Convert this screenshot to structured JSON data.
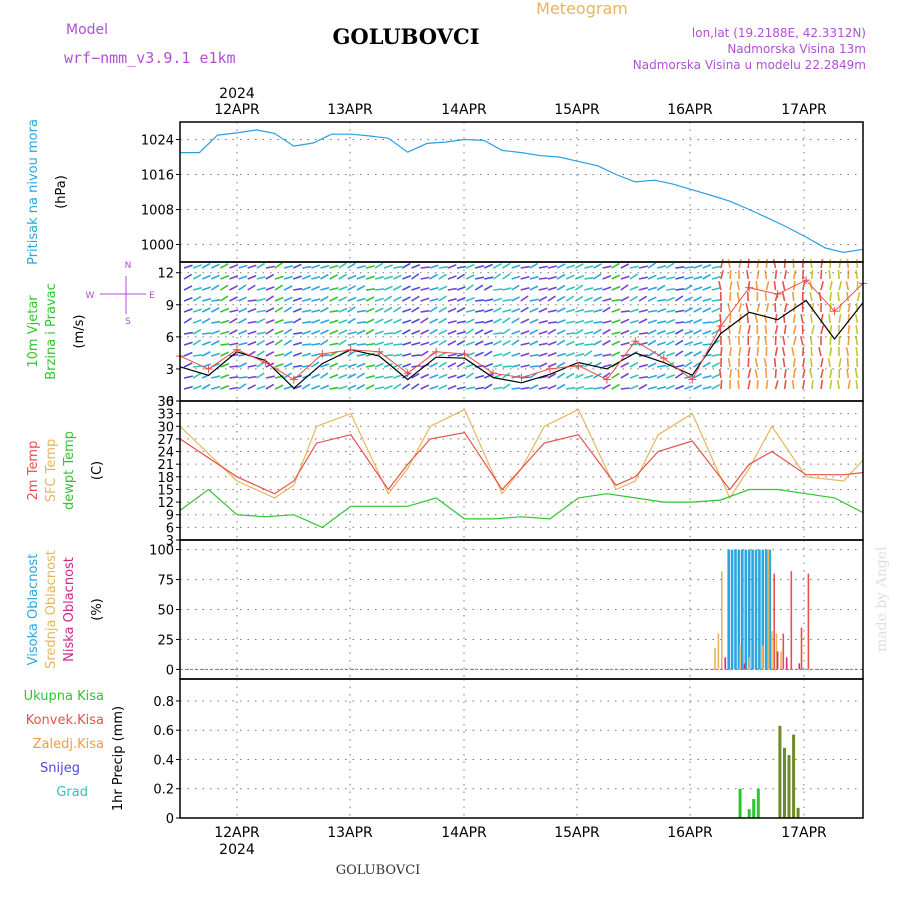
{
  "header": {
    "model_label": "Model",
    "model_name": "wrf−nmm_v3.9.1  e1km",
    "title": "GOLUBOVCI",
    "meteogram": "Meteogram",
    "lonlat": "lon,lat (19.2188E, 42.3312N)",
    "elevation": "Nadmorska Visina 13m",
    "model_elevation": "Nadmorska Visina u modelu 22.2849m",
    "footer_title": "GOLUBOVCI",
    "watermark": "made by Angel",
    "colors": {
      "model": "#b14fd6",
      "meteogram": "#e5b65c",
      "info": "#b14fd6",
      "title": "#000000"
    }
  },
  "chart_data": [
    {
      "id": "pressure",
      "type": "line",
      "ylabel_parts": [
        {
          "text": "Pritisak na nivou mora",
          "color": "#2aa6df"
        }
      ],
      "units": "(hPa)",
      "ylim": [
        996,
        1028
      ],
      "yticks": [
        1000,
        1008,
        1016,
        1024
      ],
      "grid": true,
      "x_days_start": 0,
      "x_days_end": 6,
      "series": [
        {
          "color": "#2a9fe0",
          "x": [
            0,
            0.17,
            0.33,
            0.5,
            0.67,
            0.83,
            1.0,
            1.17,
            1.33,
            1.5,
            1.67,
            1.83,
            2.0,
            2.17,
            2.33,
            2.5,
            2.67,
            2.83,
            3.0,
            3.17,
            3.33,
            3.5,
            3.67,
            3.83,
            4.0,
            4.17,
            4.33,
            4.5,
            4.67,
            4.83,
            5.0,
            5.17,
            5.33,
            5.5,
            5.67,
            5.83,
            6.0
          ],
          "y": [
            1021,
            1021,
            1025,
            1025.5,
            1026.2,
            1025.4,
            1022.5,
            1023.2,
            1025.2,
            1025.2,
            1024.8,
            1024.3,
            1021.1,
            1023.1,
            1023.4,
            1024,
            1023.8,
            1021.5,
            1021,
            1020.3,
            1020,
            1019,
            1018,
            1016,
            1014.3,
            1014.7,
            1013.8,
            1012.5,
            1011.2,
            1009.9,
            1008,
            1006,
            1004,
            1001.7,
            999.2,
            998.2,
            998.9
          ]
        }
      ]
    },
    {
      "id": "wind",
      "type": "line",
      "ylabel_parts": [
        {
          "text": "10m Vjetar",
          "color": "#2fc52f"
        },
        {
          "text": "Brzina i Pravac",
          "color": "#2fc52f"
        }
      ],
      "units": "(m/s)",
      "compass": {
        "n": "N",
        "s": "S",
        "e": "E",
        "w": "W",
        "color": "#b14fd6"
      },
      "ylim": [
        0,
        13
      ],
      "yticks": [
        0,
        3,
        6,
        9,
        12
      ],
      "grid": true,
      "x_days_start": 0,
      "x_days_end": 6,
      "series": [
        {
          "name": "mean",
          "color": "#000000",
          "x": [
            0,
            0.25,
            0.5,
            0.75,
            1.0,
            1.25,
            1.5,
            1.75,
            2.0,
            2.25,
            2.5,
            2.75,
            3.0,
            3.25,
            3.5,
            3.75,
            4.0,
            4.25,
            4.5,
            4.75,
            5.0,
            5.25,
            5.5,
            5.75,
            6.0
          ],
          "y": [
            3.2,
            2.4,
            4.6,
            3.8,
            1.2,
            3.5,
            4.8,
            4.2,
            2.0,
            4.1,
            4.0,
            2.2,
            1.7,
            2.5,
            3.6,
            3.0,
            4.5,
            3.6,
            2.4,
            6.3,
            8.3,
            7.6,
            9.4,
            5.8,
            9.2
          ]
        },
        {
          "name": "gust",
          "color": "#e8504a",
          "x": [
            0,
            0.25,
            0.5,
            0.75,
            1.0,
            1.25,
            1.5,
            1.75,
            2.0,
            2.25,
            2.5,
            2.75,
            3.0,
            3.25,
            3.5,
            3.75,
            4.0,
            4.25,
            4.5,
            4.75,
            5.0,
            5.25,
            5.5,
            5.75,
            6.0
          ],
          "y": [
            4.2,
            3.0,
            4.8,
            3.6,
            2.0,
            4.4,
            4.8,
            4.6,
            2.6,
            4.6,
            4.4,
            2.6,
            2.2,
            3.0,
            3.3,
            2.0,
            5.6,
            4.0,
            2.0,
            7.0,
            10.6,
            10.0,
            11.3,
            8.4,
            11.0
          ]
        }
      ]
    },
    {
      "id": "temperature",
      "type": "line",
      "ylabel_parts": [
        {
          "text": "2m Temp",
          "color": "#e8504a"
        },
        {
          "text": "SFC Temp",
          "color": "#e5b65c"
        },
        {
          "text": "dewpt Temp",
          "color": "#2fc52f"
        }
      ],
      "units": "(C)",
      "ylim": [
        3,
        36
      ],
      "yticks": [
        3,
        6,
        9,
        12,
        15,
        18,
        21,
        24,
        27,
        30,
        33,
        36
      ],
      "grid": true,
      "x_days_start": 0,
      "x_days_end": 6,
      "series": [
        {
          "name": "SFC Temp",
          "color": "#e5b65c",
          "x": [
            0,
            0.5,
            0.83,
            1.0,
            1.2,
            1.5,
            1.83,
            2.0,
            2.2,
            2.5,
            2.83,
            3.0,
            3.2,
            3.5,
            3.83,
            4.0,
            4.2,
            4.5,
            4.83,
            5.0,
            5.2,
            5.5,
            5.83,
            6.0
          ],
          "y": [
            30,
            17,
            13,
            16,
            30,
            33,
            14,
            20,
            30,
            34,
            14,
            20,
            30,
            34,
            15,
            17,
            28,
            33,
            13,
            20,
            30,
            18,
            17,
            22
          ]
        },
        {
          "name": "2m Temp",
          "color": "#e8504a",
          "x": [
            0,
            0.5,
            0.83,
            1.0,
            1.2,
            1.5,
            1.83,
            2.0,
            2.2,
            2.5,
            2.83,
            3.0,
            3.2,
            3.5,
            3.83,
            4.0,
            4.2,
            4.5,
            4.83,
            5.0,
            5.2,
            5.5,
            5.83,
            6.0
          ],
          "y": [
            27,
            18,
            14,
            17,
            26,
            28,
            15,
            21,
            27,
            28.5,
            15,
            20,
            26,
            28,
            16,
            18,
            24,
            26.5,
            15,
            21,
            24,
            18.5,
            18.5,
            19
          ]
        },
        {
          "name": "dewpt Temp",
          "color": "#2fc52f",
          "x": [
            0,
            0.25,
            0.5,
            0.75,
            1.0,
            1.25,
            1.5,
            1.75,
            2.0,
            2.25,
            2.5,
            2.75,
            3.0,
            3.25,
            3.5,
            3.75,
            4.0,
            4.25,
            4.5,
            4.75,
            5.0,
            5.25,
            5.5,
            5.75,
            6.0
          ],
          "y": [
            10,
            15,
            9,
            8.5,
            9,
            6,
            11,
            11,
            11,
            13,
            8,
            8,
            8.5,
            8,
            13,
            14,
            13,
            12,
            12,
            12.5,
            15,
            15,
            14,
            13,
            9.5
          ]
        }
      ]
    },
    {
      "id": "clouds",
      "type": "bar",
      "ylabel_parts": [
        {
          "text": "Visoka Oblacnost",
          "color": "#2aa6df"
        },
        {
          "text": "Srednja Oblacnost",
          "color": "#e5b65c"
        },
        {
          "text": "Niska Oblacnost",
          "color": "#d1268c"
        }
      ],
      "units": "(%)",
      "ylim": [
        -8,
        108
      ],
      "yticks": [
        0,
        25,
        50,
        75,
        100
      ],
      "grid": true,
      "x_days_start": 0,
      "x_days_end": 6,
      "series": [
        {
          "name": "Visoka Oblacnost",
          "color": "#2aa6df",
          "x": [
            4.82,
            4.85,
            4.88,
            4.91,
            4.94,
            4.97,
            5.0,
            5.03,
            5.06,
            5.09,
            5.12,
            5.15,
            5.18
          ],
          "y": [
            100,
            100,
            100,
            100,
            100,
            100,
            100,
            100,
            100,
            100,
            100,
            100,
            100
          ]
        },
        {
          "name": "Srednja Oblacnost",
          "color": "#e5b65c",
          "x": [
            4.7,
            4.73,
            4.76,
            4.92,
            5.0,
            5.12,
            5.17,
            5.2,
            5.24,
            5.28
          ],
          "y": [
            18,
            30,
            82,
            20,
            10,
            20,
            100,
            32,
            30,
            15
          ]
        },
        {
          "name": "Niska Oblacnost",
          "color": "#d1268c",
          "x": [
            4.79,
            4.96,
            5.25,
            5.33,
            5.44
          ],
          "y": [
            10,
            5,
            15,
            10,
            5
          ]
        },
        {
          "name": "Niska Oblacnost red",
          "color": "#e8504a",
          "x": [
            5.22,
            5.3,
            5.37,
            5.46,
            5.52
          ],
          "y": [
            80,
            30,
            82,
            35,
            80
          ]
        }
      ]
    },
    {
      "id": "precip",
      "type": "bar",
      "ylabel_parts": [
        {
          "text": "1hr Precip",
          "color": "#000000"
        }
      ],
      "units": "(mm)",
      "legend": [
        {
          "text": "Ukupna Kisa",
          "color": "#2fc52f"
        },
        {
          "text": "Konvek.Kisa",
          "color": "#e8504a"
        },
        {
          "text": "Zaledj.Kisa",
          "color": "#f39b3e"
        },
        {
          "text": "Snijeg",
          "color": "#4a4adf"
        },
        {
          "text": "Grad",
          "color": "#2fc5b5"
        }
      ],
      "ylim": [
        0,
        0.95
      ],
      "yticks": [
        0,
        0.2,
        0.4,
        0.6,
        0.8
      ],
      "grid": true,
      "x_days_start": 0,
      "x_days_end": 6,
      "series": [
        {
          "name": "Ukupna Kisa",
          "color": "#2fc52f",
          "x": [
            4.92,
            5.0,
            5.04,
            5.08
          ],
          "y": [
            0.2,
            0.06,
            0.13,
            0.2
          ]
        },
        {
          "name": "Ukupna Kisa olive",
          "color": "#6d8a2c",
          "x": [
            5.27,
            5.31,
            5.35,
            5.39,
            5.43
          ],
          "y": [
            0.63,
            0.48,
            0.43,
            0.57,
            0.07
          ]
        }
      ]
    }
  ],
  "time_axis": {
    "days": [
      "12APR",
      "13APR",
      "14APR",
      "15APR",
      "16APR",
      "17APR"
    ],
    "year": "2024"
  }
}
